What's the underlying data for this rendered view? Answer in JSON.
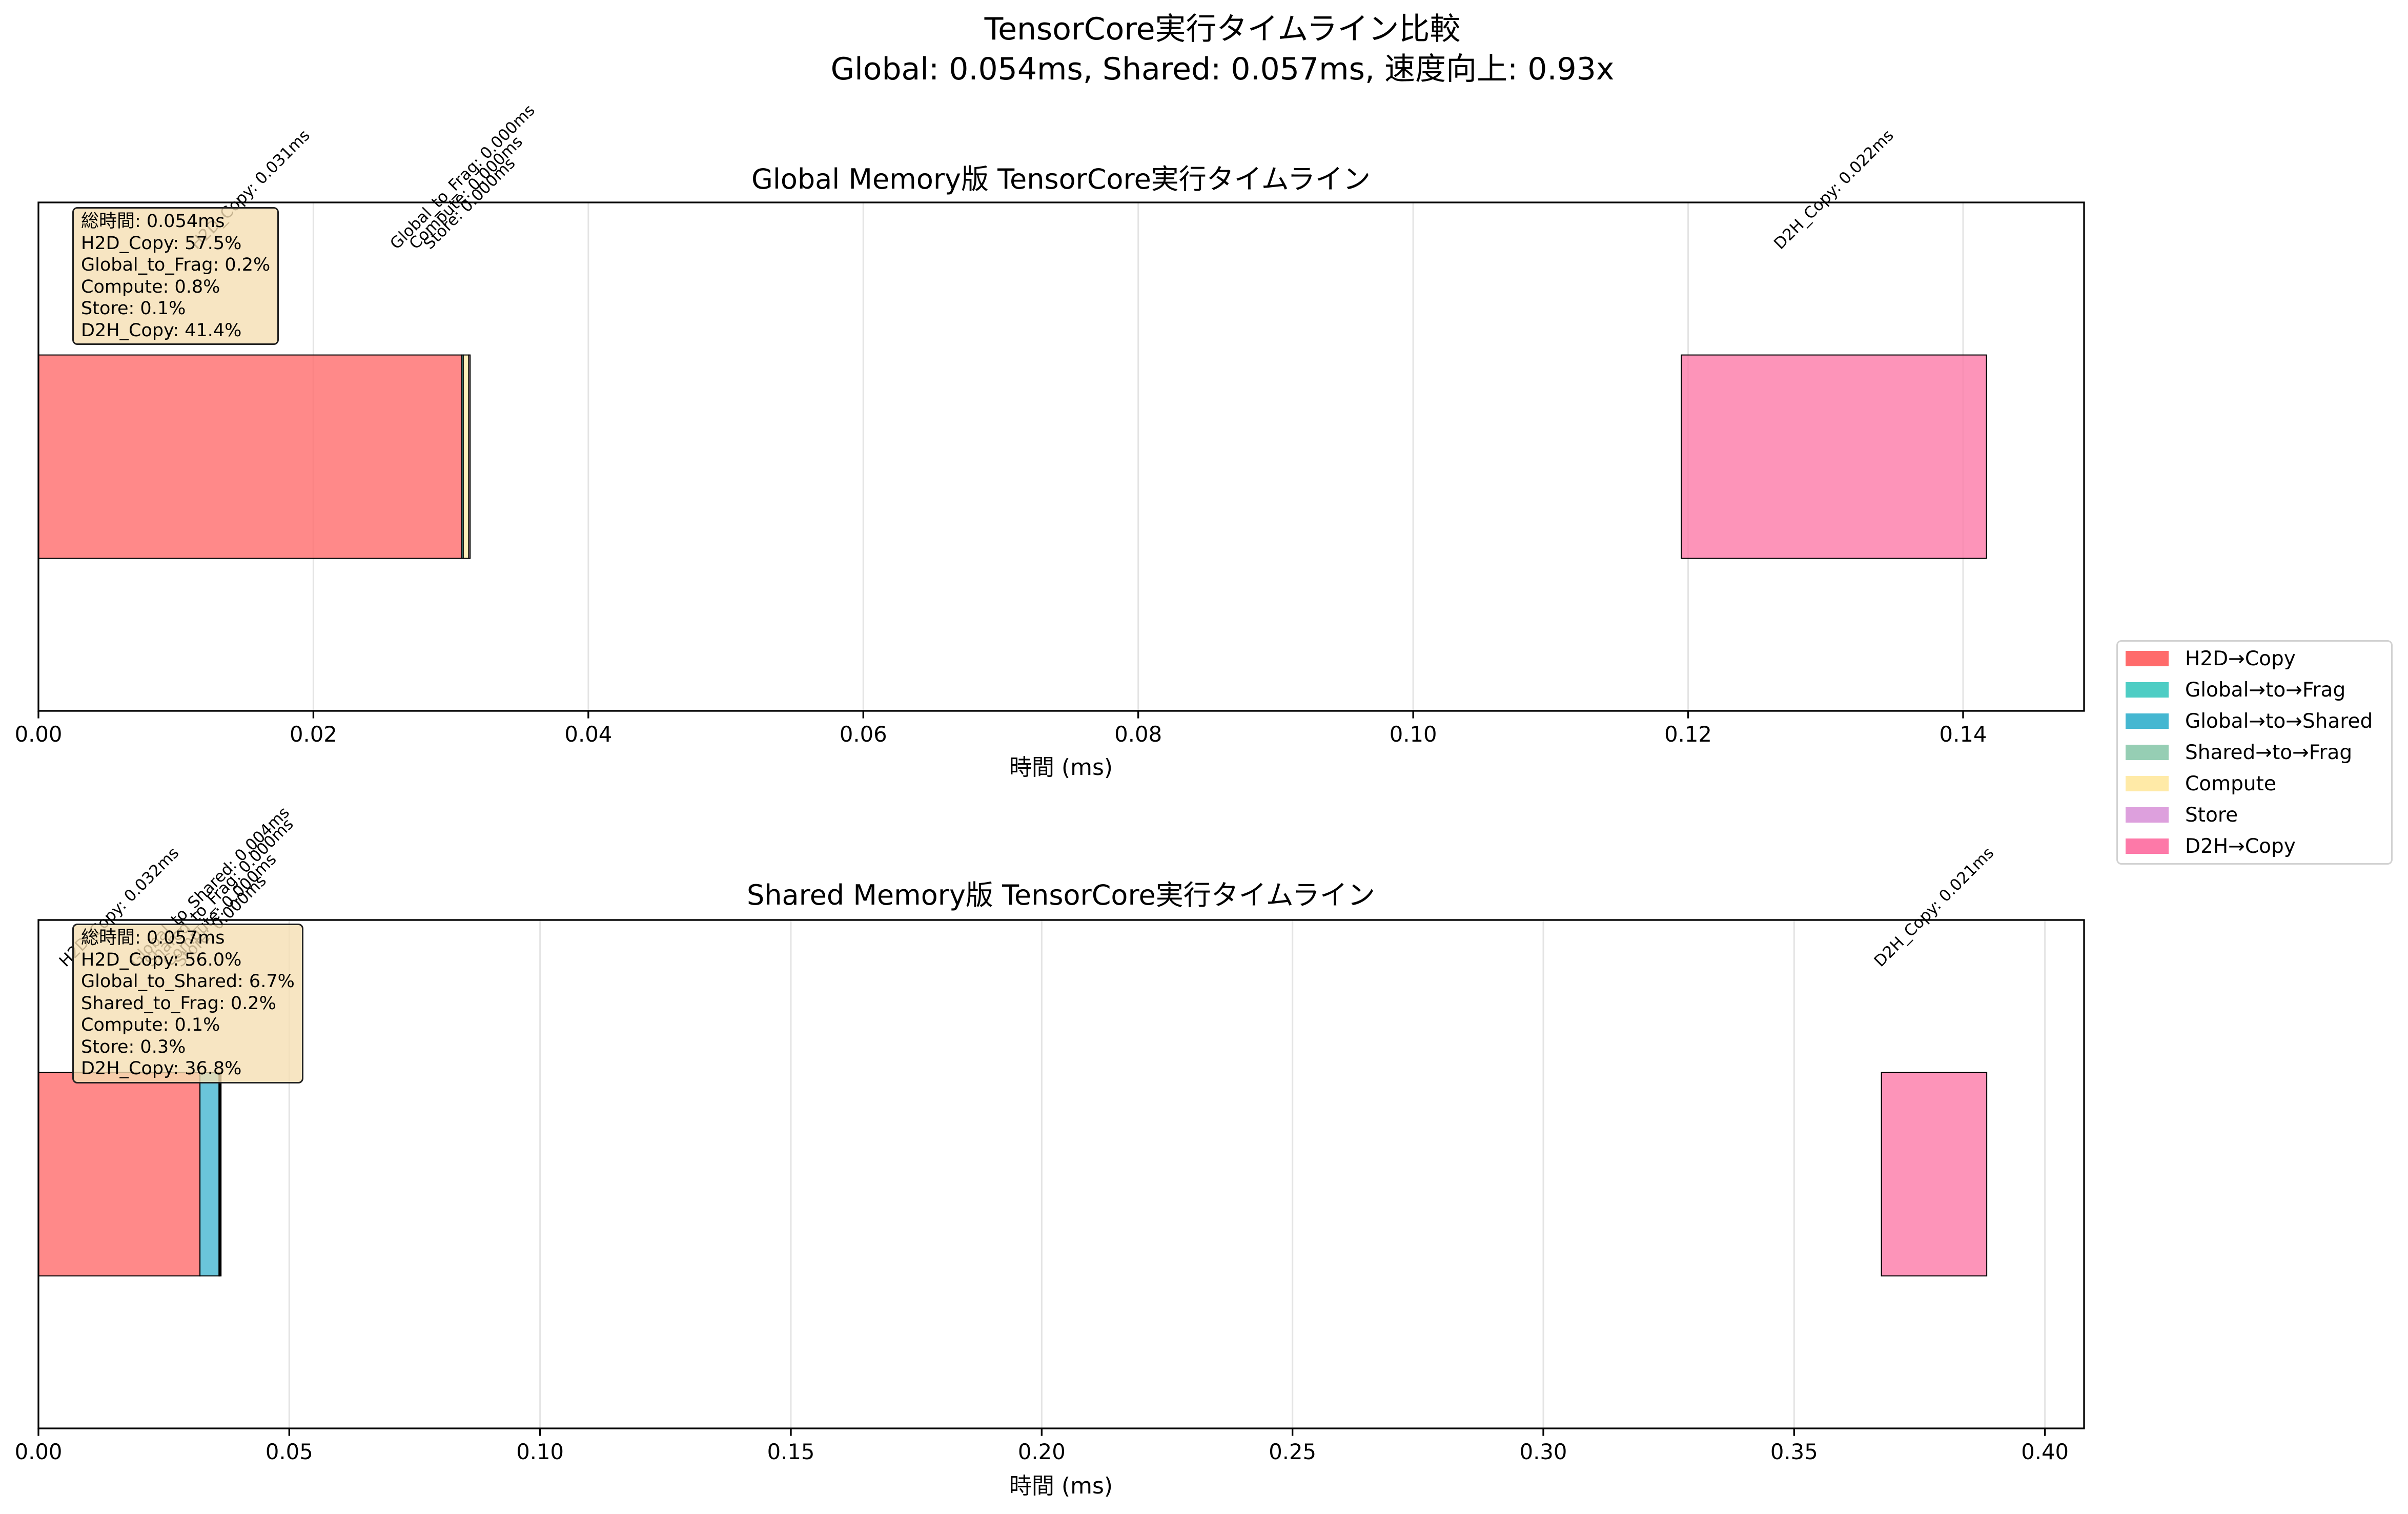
{
  "suptitle": {
    "line1": "TensorCore実行タイムライン比較",
    "line2": "Global: 0.054ms, Shared: 0.057ms, 速度向上: 0.93x"
  },
  "legend": {
    "placement": "right",
    "items": [
      {
        "label": "H2D→Copy",
        "color": "#FF6B6B"
      },
      {
        "label": "Global→to→Frag",
        "color": "#4ECDC4"
      },
      {
        "label": "Global→to→Shared",
        "color": "#45B7D1"
      },
      {
        "label": "Shared→to→Frag",
        "color": "#96CEB4"
      },
      {
        "label": "Compute",
        "color": "#FFEAA7"
      },
      {
        "label": "Store",
        "color": "#DDA0DD"
      },
      {
        "label": "D2H→Copy",
        "color": "#FD79A8"
      }
    ]
  },
  "chart_data": [
    {
      "type": "bar",
      "title": "Global Memory版 TensorCore実行タイムライン",
      "xlabel": "時間 (ms)",
      "xlim": [
        0,
        0.1488
      ],
      "xticks": [
        0,
        0.02,
        0.04,
        0.06,
        0.08,
        0.1,
        0.12,
        0.14
      ],
      "xtick_labels": [
        "0.00",
        "0.02",
        "0.04",
        "0.06",
        "0.08",
        "0.10",
        "0.12",
        "0.14"
      ],
      "grid": true,
      "segments": [
        {
          "label": "H2D_Copy: 0.031ms",
          "start": 0,
          "duration": 0.0308,
          "color": "#FF6B6B"
        },
        {
          "label": "Global_to_Frag: 0.000ms",
          "start": 0.0308,
          "duration": 0.0001,
          "color": "#4ECDC4"
        },
        {
          "label": "Compute: 0.000ms",
          "start": 0.0309,
          "duration": 0.0004,
          "color": "#FFEAA7"
        },
        {
          "label": "Store: 0.000ms",
          "start": 0.0313,
          "duration": 0.0001,
          "color": "#DDA0DD"
        },
        {
          "label": "D2H_Copy: 0.022ms",
          "start": 0.1195,
          "duration": 0.0222,
          "color": "#FD79A8"
        }
      ],
      "info_box": [
        "総時間: 0.054ms",
        "H2D_Copy: 57.5%",
        "Global_to_Frag: 0.2%",
        "Compute: 0.8%",
        "Store: 0.1%",
        "D2H_Copy: 41.4%"
      ]
    },
    {
      "type": "bar",
      "title": "Shared Memory版 TensorCore実行タイムライン",
      "xlabel": "時間 (ms)",
      "xlim": [
        0,
        0.4078
      ],
      "xticks": [
        0,
        0.05,
        0.1,
        0.15,
        0.2,
        0.25,
        0.3,
        0.35,
        0.4
      ],
      "xtick_labels": [
        "0.00",
        "0.05",
        "0.10",
        "0.15",
        "0.20",
        "0.25",
        "0.30",
        "0.35",
        "0.40"
      ],
      "grid": true,
      "segments": [
        {
          "label": "H2D_Copy: 0.032ms",
          "start": 0,
          "duration": 0.0322,
          "color": "#FF6B6B"
        },
        {
          "label": "Global_to_Shared: 0.004ms",
          "start": 0.0322,
          "duration": 0.0038,
          "color": "#45B7D1"
        },
        {
          "label": "Shared_to_Frag: 0.000ms",
          "start": 0.036,
          "duration": 0.0001,
          "color": "#96CEB4"
        },
        {
          "label": "Compute: 0.000ms",
          "start": 0.0361,
          "duration": 0.0001,
          "color": "#FFEAA7"
        },
        {
          "label": "Store: 0.000ms",
          "start": 0.0362,
          "duration": 0.0002,
          "color": "#DDA0DD"
        },
        {
          "label": "D2H_Copy: 0.021ms",
          "start": 0.3674,
          "duration": 0.021,
          "color": "#FD79A8"
        }
      ],
      "info_box": [
        "総時間: 0.057ms",
        "H2D_Copy: 56.0%",
        "Global_to_Shared: 6.7%",
        "Shared_to_Frag: 0.2%",
        "Compute: 0.1%",
        "Store: 0.3%",
        "D2H_Copy: 36.8%"
      ]
    }
  ]
}
